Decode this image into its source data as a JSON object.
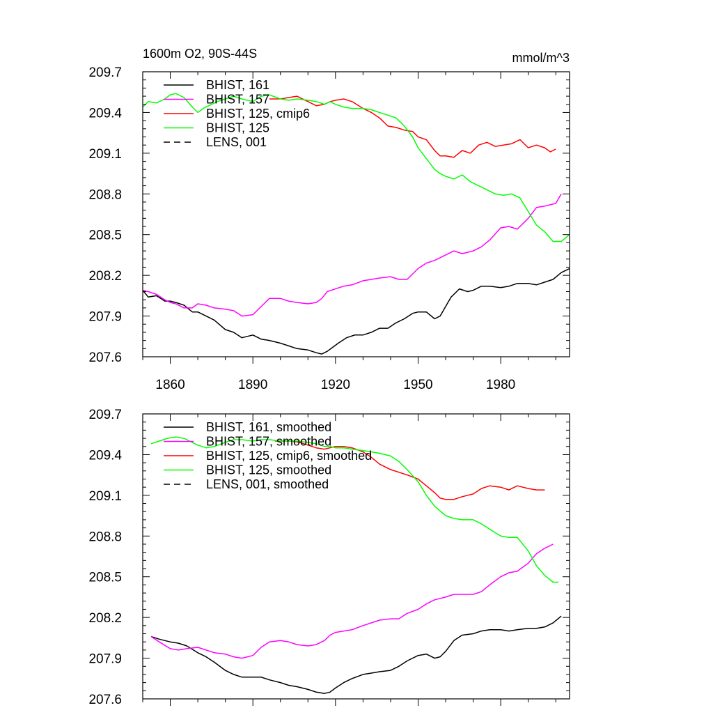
{
  "chart_data": [
    {
      "type": "line",
      "title_left": "1600m O2, 90S-44S",
      "title_right": "mmol/m^3",
      "xlabel": "",
      "ylabel": "",
      "xlim": [
        1850,
        2005
      ],
      "ylim": [
        207.6,
        209.7
      ],
      "xticks": [
        1860,
        1890,
        1920,
        1950,
        1980
      ],
      "yticks": [
        207.6,
        207.9,
        208.2,
        208.5,
        208.8,
        209.1,
        209.4,
        209.7
      ],
      "ytick_labels": [
        "207.6",
        "207.9",
        "208.2",
        "208.5",
        "208.8",
        "209.1",
        "209.4",
        "209.7"
      ],
      "show_xtick_labels": true,
      "legend_position": "top-left",
      "series": [
        {
          "name": "BHIST, 161",
          "color": "#000000",
          "dash": "solid",
          "x": [
            1850,
            1852,
            1855,
            1858,
            1860,
            1862,
            1865,
            1868,
            1870,
            1873,
            1876,
            1880,
            1883,
            1886,
            1890,
            1893,
            1896,
            1900,
            1903,
            1906,
            1910,
            1913,
            1915,
            1917,
            1919,
            1921,
            1924,
            1927,
            1930,
            1933,
            1936,
            1939,
            1942,
            1945,
            1948,
            1950,
            1953,
            1956,
            1958,
            1960,
            1962,
            1965,
            1968,
            1970,
            1973,
            1976,
            1980,
            1983,
            1986,
            1990,
            1993,
            1996,
            1999,
            2002,
            2005
          ],
          "y": [
            208.09,
            208.04,
            208.05,
            208.01,
            208.01,
            208.0,
            207.98,
            207.93,
            207.93,
            207.9,
            207.87,
            207.8,
            207.78,
            207.74,
            207.76,
            207.73,
            207.72,
            207.7,
            207.68,
            207.66,
            207.65,
            207.63,
            207.62,
            207.64,
            207.67,
            207.7,
            207.74,
            207.76,
            207.76,
            207.78,
            207.81,
            207.81,
            207.85,
            207.88,
            207.92,
            207.93,
            207.93,
            207.88,
            207.9,
            207.97,
            208.04,
            208.1,
            208.08,
            208.09,
            208.12,
            208.12,
            208.11,
            208.12,
            208.14,
            208.14,
            208.13,
            208.15,
            208.17,
            208.22,
            208.25
          ]
        },
        {
          "name": "BHIST, 157",
          "color": "#ff00ff",
          "dash": "solid",
          "x": [
            1850,
            1852,
            1855,
            1858,
            1860,
            1862,
            1865,
            1868,
            1870,
            1873,
            1876,
            1880,
            1883,
            1886,
            1890,
            1893,
            1896,
            1900,
            1903,
            1906,
            1910,
            1913,
            1915,
            1917,
            1920,
            1923,
            1926,
            1930,
            1933,
            1936,
            1940,
            1943,
            1946,
            1950,
            1953,
            1956,
            1958,
            1960,
            1963,
            1966,
            1970,
            1973,
            1976,
            1980,
            1983,
            1986,
            1990,
            1993,
            1996,
            2000,
            2002
          ],
          "y": [
            208.09,
            208.08,
            208.06,
            208.02,
            208.0,
            207.99,
            207.96,
            207.96,
            207.99,
            207.98,
            207.96,
            207.95,
            207.94,
            207.9,
            207.91,
            207.97,
            208.03,
            208.03,
            208.01,
            208.0,
            207.99,
            208.0,
            208.03,
            208.08,
            208.1,
            208.12,
            208.13,
            208.16,
            208.17,
            208.18,
            208.19,
            208.17,
            208.17,
            208.25,
            208.29,
            208.31,
            208.33,
            208.35,
            208.38,
            208.36,
            208.38,
            208.41,
            208.46,
            208.55,
            208.56,
            208.54,
            208.62,
            208.7,
            208.71,
            208.73,
            208.8
          ]
        },
        {
          "name": "BHIST, 125, cmip6",
          "color": "#ff0000",
          "dash": "solid",
          "x": [
            1896,
            1900,
            1903,
            1906,
            1910,
            1913,
            1916,
            1918,
            1920,
            1923,
            1926,
            1930,
            1933,
            1936,
            1939,
            1942,
            1945,
            1948,
            1950,
            1953,
            1956,
            1958,
            1960,
            1963,
            1966,
            1969,
            1972,
            1975,
            1978,
            1981,
            1984,
            1987,
            1990,
            1993,
            1996,
            1998,
            2000
          ],
          "y": [
            209.5,
            209.5,
            209.51,
            209.52,
            209.48,
            209.45,
            209.46,
            209.48,
            209.49,
            209.5,
            209.48,
            209.43,
            209.4,
            209.36,
            209.3,
            209.29,
            209.27,
            209.26,
            209.22,
            209.2,
            209.12,
            209.08,
            209.08,
            209.07,
            209.12,
            209.1,
            209.16,
            209.18,
            209.15,
            209.16,
            209.17,
            209.2,
            209.14,
            209.16,
            209.14,
            209.11,
            209.13
          ]
        },
        {
          "name": "BHIST, 125",
          "color": "#00ff00",
          "dash": "solid",
          "x": [
            1850,
            1852,
            1855,
            1858,
            1860,
            1862,
            1865,
            1868,
            1870,
            1872,
            1874,
            1877,
            1880,
            1883,
            1886,
            1890,
            1893,
            1896,
            1900,
            1903,
            1906,
            1910,
            1913,
            1916,
            1918,
            1920,
            1923,
            1926,
            1930,
            1933,
            1936,
            1939,
            1942,
            1945,
            1948,
            1950,
            1953,
            1956,
            1958,
            1960,
            1963,
            1966,
            1969,
            1972,
            1975,
            1978,
            1981,
            1984,
            1987,
            1990,
            1993,
            1996,
            1999,
            2002,
            2005
          ],
          "y": [
            209.44,
            209.48,
            209.47,
            209.5,
            209.53,
            209.54,
            209.51,
            209.44,
            209.4,
            209.43,
            209.45,
            209.48,
            209.5,
            209.52,
            209.5,
            209.48,
            209.52,
            209.53,
            209.5,
            209.49,
            209.5,
            209.49,
            209.48,
            209.46,
            209.48,
            209.46,
            209.44,
            209.43,
            209.43,
            209.42,
            209.4,
            209.38,
            209.36,
            209.3,
            209.22,
            209.14,
            209.06,
            208.98,
            208.95,
            208.93,
            208.91,
            208.94,
            208.89,
            208.86,
            208.83,
            208.8,
            208.79,
            208.8,
            208.77,
            208.67,
            208.57,
            208.52,
            208.45,
            208.45,
            208.5
          ]
        },
        {
          "name": "LENS, 001",
          "color": "#000000",
          "dash": "dashed",
          "x": [],
          "y": []
        }
      ]
    },
    {
      "type": "line",
      "title_left": "",
      "title_right": "",
      "xlabel": "",
      "ylabel": "",
      "xlim": [
        1850,
        2005
      ],
      "ylim": [
        207.6,
        209.7
      ],
      "xticks": [
        1860,
        1890,
        1920,
        1950,
        1980
      ],
      "yticks": [
        207.6,
        207.9,
        208.2,
        208.5,
        208.8,
        209.1,
        209.4,
        209.7
      ],
      "ytick_labels": [
        "207.6",
        "207.9",
        "208.2",
        "208.5",
        "208.8",
        "209.1",
        "209.4",
        "209.7"
      ],
      "show_xtick_labels": false,
      "legend_position": "top-left",
      "series": [
        {
          "name": "BHIST, 161, smoothed",
          "color": "#000000",
          "dash": "solid",
          "x": [
            1853,
            1856,
            1860,
            1863,
            1866,
            1870,
            1873,
            1876,
            1880,
            1883,
            1886,
            1890,
            1893,
            1896,
            1900,
            1903,
            1906,
            1910,
            1913,
            1916,
            1918,
            1920,
            1923,
            1926,
            1930,
            1933,
            1936,
            1940,
            1943,
            1946,
            1950,
            1953,
            1956,
            1958,
            1960,
            1963,
            1966,
            1970,
            1973,
            1976,
            1980,
            1983,
            1986,
            1990,
            1993,
            1996,
            1999,
            2002
          ],
          "y": [
            208.06,
            208.04,
            208.02,
            208.01,
            207.99,
            207.94,
            207.91,
            207.87,
            207.81,
            207.78,
            207.76,
            207.76,
            207.76,
            207.74,
            207.72,
            207.7,
            207.69,
            207.67,
            207.65,
            207.64,
            207.65,
            207.68,
            207.72,
            207.75,
            207.78,
            207.79,
            207.8,
            207.81,
            207.84,
            207.88,
            207.92,
            207.93,
            207.9,
            207.91,
            207.95,
            208.03,
            208.07,
            208.08,
            208.1,
            208.11,
            208.11,
            208.1,
            208.11,
            208.12,
            208.12,
            208.13,
            208.16,
            208.21
          ]
        },
        {
          "name": "BHIST, 157, smoothed",
          "color": "#ff00ff",
          "dash": "solid",
          "x": [
            1853,
            1856,
            1860,
            1863,
            1866,
            1870,
            1873,
            1876,
            1880,
            1883,
            1886,
            1890,
            1893,
            1896,
            1900,
            1903,
            1906,
            1910,
            1913,
            1916,
            1918,
            1920,
            1923,
            1926,
            1930,
            1933,
            1936,
            1940,
            1943,
            1946,
            1950,
            1953,
            1956,
            1960,
            1963,
            1966,
            1970,
            1973,
            1976,
            1980,
            1983,
            1986,
            1990,
            1993,
            1996,
            1999
          ],
          "y": [
            208.06,
            208.02,
            207.97,
            207.96,
            207.97,
            207.98,
            207.96,
            207.94,
            207.93,
            207.91,
            207.9,
            207.92,
            207.98,
            208.02,
            208.03,
            208.02,
            208.0,
            207.99,
            208.0,
            208.03,
            208.07,
            208.09,
            208.1,
            208.11,
            208.14,
            208.16,
            208.18,
            208.19,
            208.19,
            208.23,
            208.26,
            208.3,
            208.33,
            208.35,
            208.37,
            208.37,
            208.37,
            208.39,
            208.44,
            208.5,
            208.53,
            208.54,
            208.6,
            208.67,
            208.71,
            208.74
          ]
        },
        {
          "name": "BHIST, 125, cmip6, smoothed",
          "color": "#ff0000",
          "dash": "solid",
          "x": [
            1898,
            1901,
            1904,
            1907,
            1910,
            1913,
            1916,
            1918,
            1920,
            1923,
            1926,
            1930,
            1933,
            1936,
            1940,
            1943,
            1946,
            1950,
            1953,
            1956,
            1958,
            1960,
            1963,
            1966,
            1970,
            1973,
            1976,
            1980,
            1983,
            1986,
            1990,
            1993,
            1996
          ],
          "y": [
            209.5,
            209.5,
            209.5,
            209.49,
            209.47,
            209.45,
            209.44,
            209.45,
            209.46,
            209.46,
            209.45,
            209.42,
            209.38,
            209.33,
            209.29,
            209.27,
            209.25,
            209.22,
            209.17,
            209.12,
            209.08,
            209.07,
            209.07,
            209.09,
            209.11,
            209.15,
            209.17,
            209.16,
            209.14,
            209.17,
            209.15,
            209.14,
            209.14
          ]
        },
        {
          "name": "BHIST, 125, smoothed",
          "color": "#00ff00",
          "dash": "solid",
          "x": [
            1853,
            1856,
            1859,
            1862,
            1865,
            1868,
            1870,
            1873,
            1876,
            1880,
            1883,
            1886,
            1890,
            1893,
            1896,
            1900,
            1903,
            1906,
            1910,
            1913,
            1916,
            1918,
            1920,
            1923,
            1926,
            1930,
            1933,
            1936,
            1940,
            1943,
            1946,
            1950,
            1953,
            1956,
            1960,
            1963,
            1966,
            1970,
            1973,
            1976,
            1980,
            1983,
            1986,
            1990,
            1993,
            1996,
            1999,
            2001
          ],
          "y": [
            209.48,
            209.5,
            209.52,
            209.53,
            209.52,
            209.49,
            209.47,
            209.45,
            209.46,
            209.49,
            209.51,
            209.51,
            209.5,
            209.51,
            209.51,
            209.5,
            209.5,
            209.5,
            209.49,
            209.48,
            209.46,
            209.46,
            209.45,
            209.45,
            209.44,
            209.43,
            209.42,
            209.41,
            209.39,
            209.35,
            209.29,
            209.2,
            209.1,
            209.02,
            208.95,
            208.93,
            208.92,
            208.92,
            208.89,
            208.85,
            208.8,
            208.79,
            208.79,
            208.69,
            208.58,
            208.51,
            208.46,
            208.46
          ]
        },
        {
          "name": "LENS, 001, smoothed",
          "color": "#000000",
          "dash": "dashed",
          "x": [],
          "y": []
        }
      ]
    }
  ]
}
